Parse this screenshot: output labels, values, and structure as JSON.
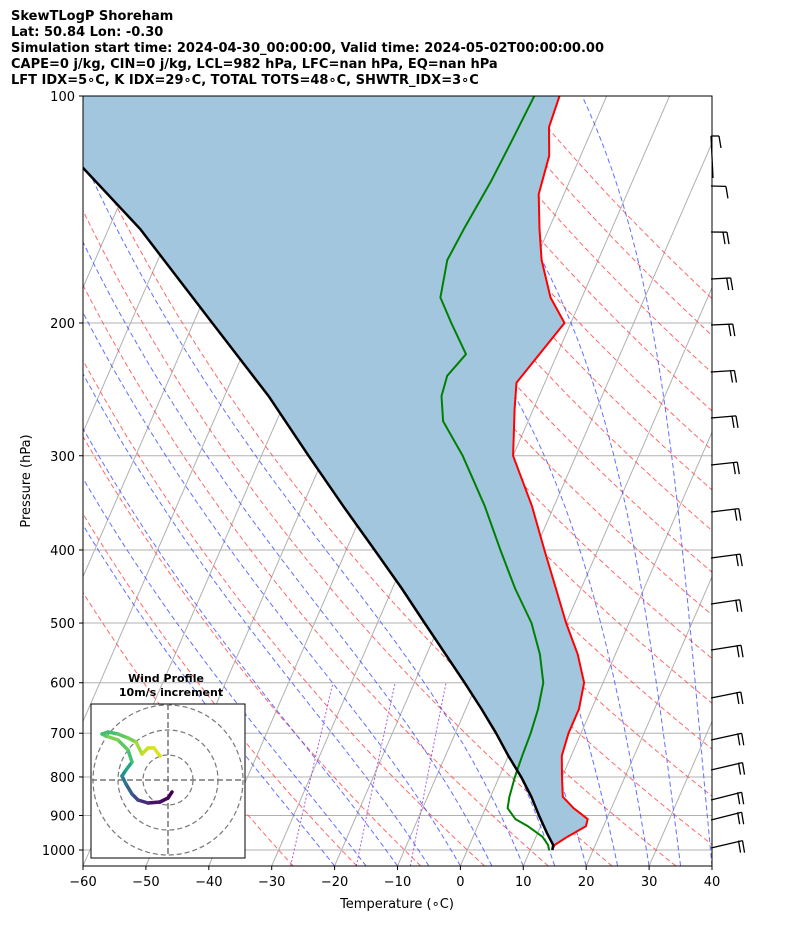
{
  "title_lines": [
    "SkewTLogP Shoreham",
    "Lat: 50.84   Lon: -0.30",
    "Simulation start time: 2024-04-30_00:00:00, Valid time: 2024-05-02T00:00:00.00",
    "CAPE=0 j/kg, CIN=0 j/kg, LCL=982 hPa, LFC=nan hPa, EQ=nan hPa",
    "LFT IDX=5∘C, K IDX=29∘C, TOTAL TOTS=48∘C, SHWTR_IDX=3∘C"
  ],
  "chart_data": {
    "type": "line",
    "subtype": "skew-t log-p",
    "xlabel": "Temperature (∘C)",
    "ylabel": "Pressure (hPa)",
    "x_ticks": [
      -60,
      -50,
      -40,
      -30,
      -20,
      -10,
      0,
      10,
      20,
      30,
      40
    ],
    "x_tick_labels": [
      "−60",
      "−50",
      "−40",
      "−30",
      "−20",
      "−10",
      "0",
      "10",
      "20",
      "30",
      "40"
    ],
    "y_ticks": [
      100,
      200,
      300,
      400,
      500,
      600,
      700,
      800,
      900,
      1000
    ],
    "y_tick_labels": [
      "100",
      "200",
      "300",
      "400",
      "500",
      "600",
      "700",
      "800",
      "900",
      "1000"
    ],
    "xlim": [
      -60,
      40
    ],
    "ylim": [
      1050,
      100
    ],
    "y_scale": "log",
    "grid": true,
    "series": [
      {
        "color": "#ff0000",
        "pressure": [
          1000,
          985,
          960,
          930,
          910,
          880,
          850,
          800,
          750,
          700,
          650,
          600,
          550,
          500,
          450,
          400,
          350,
          300,
          260,
          240,
          200,
          185,
          165,
          150,
          135,
          120,
          110,
          100
        ],
        "values": [
          13.5,
          13.5,
          15.0,
          17.2,
          17.0,
          14.0,
          11.5,
          10.0,
          8.5,
          8.0,
          8.0,
          7.0,
          4.0,
          0.0,
          -4.0,
          -8.5,
          -13.5,
          -20.0,
          -23.0,
          -24.5,
          -21.0,
          -25.0,
          -29.0,
          -31.5,
          -34.0,
          -35.0,
          -37.0,
          -37.5
        ]
      },
      {
        "color": "#008000",
        "pressure": [
          1000,
          985,
          960,
          930,
          910,
          880,
          850,
          800,
          750,
          700,
          650,
          600,
          550,
          500,
          450,
          400,
          350,
          300,
          270,
          250,
          235,
          220,
          200,
          185,
          165,
          150,
          130,
          115,
          100
        ],
        "values": [
          13.0,
          12.5,
          11.0,
          8.0,
          5.5,
          3.5,
          3.0,
          2.5,
          2.2,
          2.0,
          1.5,
          0.5,
          -2.0,
          -5.5,
          -10.5,
          -15.5,
          -21.0,
          -28.0,
          -33.5,
          -35.5,
          -36.0,
          -34.5,
          -39.0,
          -42.5,
          -44.0,
          -43.5,
          -42.5,
          -42.0,
          -41.5
        ]
      },
      {
        "color": "#000000",
        "pressure": [
          1000,
          985,
          950,
          900,
          850,
          800,
          750,
          700,
          650,
          600,
          550,
          500,
          450,
          400,
          350,
          300,
          250,
          200,
          150,
          125,
          100
        ],
        "values": [
          13.5,
          13.3,
          11.5,
          9.0,
          6.5,
          3.5,
          0.0,
          -3.5,
          -7.5,
          -12.0,
          -17.0,
          -22.5,
          -28.5,
          -35.5,
          -43.5,
          -52.5,
          -63.0,
          -77.0,
          -95.0,
          -108.0,
          -124.0
        ]
      }
    ],
    "wind_barbs_panel": true,
    "inset": {
      "title_lines": [
        "Wind Profile",
        "10m/s increment"
      ],
      "colormap": "viridis"
    }
  }
}
